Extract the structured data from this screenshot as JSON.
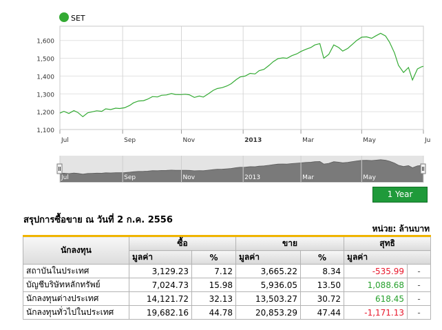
{
  "chart_data": {
    "type": "line",
    "legend": {
      "label": "SET",
      "color": "#33aa33",
      "placement": "top-left"
    },
    "y_ticks": [
      "1,100",
      "1,200",
      "1,300",
      "1,400",
      "1,500",
      "1,600"
    ],
    "ylim": [
      1100,
      1680
    ],
    "x_tick_labels": [
      {
        "label": "Jul",
        "date": "2012-07-02"
      },
      {
        "label": "Sep",
        "date": "2012-09-03"
      },
      {
        "label": "Nov",
        "date": "2012-11-01"
      },
      {
        "label": "2013",
        "date": "2013-01-02"
      },
      {
        "label": "Mar",
        "date": "2013-03-01"
      },
      {
        "label": "May",
        "date": "2013-05-01"
      },
      {
        "label": "Ju",
        "date": "2013-07-02"
      }
    ],
    "xlim": [
      "2012-07-02",
      "2013-07-02"
    ],
    "grid": true,
    "series": [
      {
        "color": "#33aa33",
        "points": [
          [
            "2012-07-02",
            1192
          ],
          [
            "2012-07-06",
            1202
          ],
          [
            "2012-07-11",
            1190
          ],
          [
            "2012-07-16",
            1206
          ],
          [
            "2012-07-20",
            1196
          ],
          [
            "2012-07-25",
            1172
          ],
          [
            "2012-07-30",
            1194
          ],
          [
            "2012-08-03",
            1199
          ],
          [
            "2012-08-08",
            1205
          ],
          [
            "2012-08-13",
            1202
          ],
          [
            "2012-08-17",
            1216
          ],
          [
            "2012-08-22",
            1212
          ],
          [
            "2012-08-27",
            1220
          ],
          [
            "2012-08-31",
            1218
          ],
          [
            "2012-09-05",
            1222
          ],
          [
            "2012-09-10",
            1235
          ],
          [
            "2012-09-14",
            1250
          ],
          [
            "2012-09-19",
            1260
          ],
          [
            "2012-09-24",
            1262
          ],
          [
            "2012-09-28",
            1270
          ],
          [
            "2012-10-03",
            1285
          ],
          [
            "2012-10-08",
            1283
          ],
          [
            "2012-10-12",
            1292
          ],
          [
            "2012-10-17",
            1294
          ],
          [
            "2012-10-22",
            1302
          ],
          [
            "2012-10-26",
            1297
          ],
          [
            "2012-10-31",
            1296
          ],
          [
            "2012-11-05",
            1298
          ],
          [
            "2012-11-09",
            1295
          ],
          [
            "2012-11-14",
            1280
          ],
          [
            "2012-11-19",
            1288
          ],
          [
            "2012-11-23",
            1282
          ],
          [
            "2012-11-28",
            1300
          ],
          [
            "2012-12-03",
            1320
          ],
          [
            "2012-12-07",
            1330
          ],
          [
            "2012-12-12",
            1335
          ],
          [
            "2012-12-17",
            1345
          ],
          [
            "2012-12-21",
            1357
          ],
          [
            "2012-12-26",
            1380
          ],
          [
            "2012-12-30",
            1395
          ],
          [
            "2013-01-04",
            1400
          ],
          [
            "2013-01-09",
            1415
          ],
          [
            "2013-01-14",
            1412
          ],
          [
            "2013-01-18",
            1430
          ],
          [
            "2013-01-23",
            1438
          ],
          [
            "2013-01-28",
            1460
          ],
          [
            "2013-02-01",
            1480
          ],
          [
            "2013-02-06",
            1498
          ],
          [
            "2013-02-11",
            1502
          ],
          [
            "2013-02-15",
            1500
          ],
          [
            "2013-02-20",
            1515
          ],
          [
            "2013-02-25",
            1525
          ],
          [
            "2013-03-01",
            1538
          ],
          [
            "2013-03-06",
            1550
          ],
          [
            "2013-03-11",
            1560
          ],
          [
            "2013-03-15",
            1575
          ],
          [
            "2013-03-20",
            1582
          ],
          [
            "2013-03-24",
            1500
          ],
          [
            "2013-03-29",
            1522
          ],
          [
            "2013-04-03",
            1575
          ],
          [
            "2013-04-08",
            1560
          ],
          [
            "2013-04-12",
            1540
          ],
          [
            "2013-04-17",
            1555
          ],
          [
            "2013-04-22",
            1580
          ],
          [
            "2013-04-26",
            1600
          ],
          [
            "2013-05-01",
            1618
          ],
          [
            "2013-05-06",
            1620
          ],
          [
            "2013-05-11",
            1612
          ],
          [
            "2013-05-15",
            1625
          ],
          [
            "2013-05-20",
            1640
          ],
          [
            "2013-05-25",
            1625
          ],
          [
            "2013-05-29",
            1590
          ],
          [
            "2013-06-03",
            1530
          ],
          [
            "2013-06-07",
            1460
          ],
          [
            "2013-06-12",
            1420
          ],
          [
            "2013-06-17",
            1448
          ],
          [
            "2013-06-21",
            1378
          ],
          [
            "2013-06-26",
            1440
          ],
          [
            "2013-06-30",
            1452
          ],
          [
            "2013-07-02",
            1455
          ]
        ]
      }
    ],
    "navigator": {
      "x_tick_labels": [
        "Jul",
        "Sep",
        "Nov",
        "2013",
        "Mar",
        "May",
        "Ju"
      ]
    }
  },
  "period_button": {
    "label": "1 Year"
  },
  "summary": {
    "title": "สรุปการซื้อขาย ณ วันที่ 2 ก.ค. 2556",
    "unit": "หน่วย: ล้านบาท",
    "headers": {
      "investor": "นักลงทุน",
      "buy": "ซื้อ",
      "sell": "ขาย",
      "net": "สุทธิ",
      "value": "มูลค่า",
      "percent": "%"
    },
    "rows": [
      {
        "investor": "สถาบันในประเทศ",
        "buy_value": "3,129.23",
        "buy_pct": "7.12",
        "sell_value": "3,665.22",
        "sell_pct": "8.34",
        "net": "-535.99",
        "net_sign": "neg",
        "extra": "-"
      },
      {
        "investor": "บัญชีบริษัทหลักทรัพย์",
        "buy_value": "7,024.73",
        "buy_pct": "15.98",
        "sell_value": "5,936.05",
        "sell_pct": "13.50",
        "net": "1,088.68",
        "net_sign": "pos",
        "extra": "-"
      },
      {
        "investor": "นักลงทุนต่างประเทศ",
        "buy_value": "14,121.72",
        "buy_pct": "32.13",
        "sell_value": "13,503.27",
        "sell_pct": "30.72",
        "net": "618.45",
        "net_sign": "pos",
        "extra": "-"
      },
      {
        "investor": "นักลงทุนทั่วไปในประเทศ",
        "buy_value": "19,682.16",
        "buy_pct": "44.78",
        "sell_value": "20,853.29",
        "sell_pct": "47.44",
        "net": "-1,171.13",
        "net_sign": "neg",
        "extra": "-"
      }
    ]
  }
}
